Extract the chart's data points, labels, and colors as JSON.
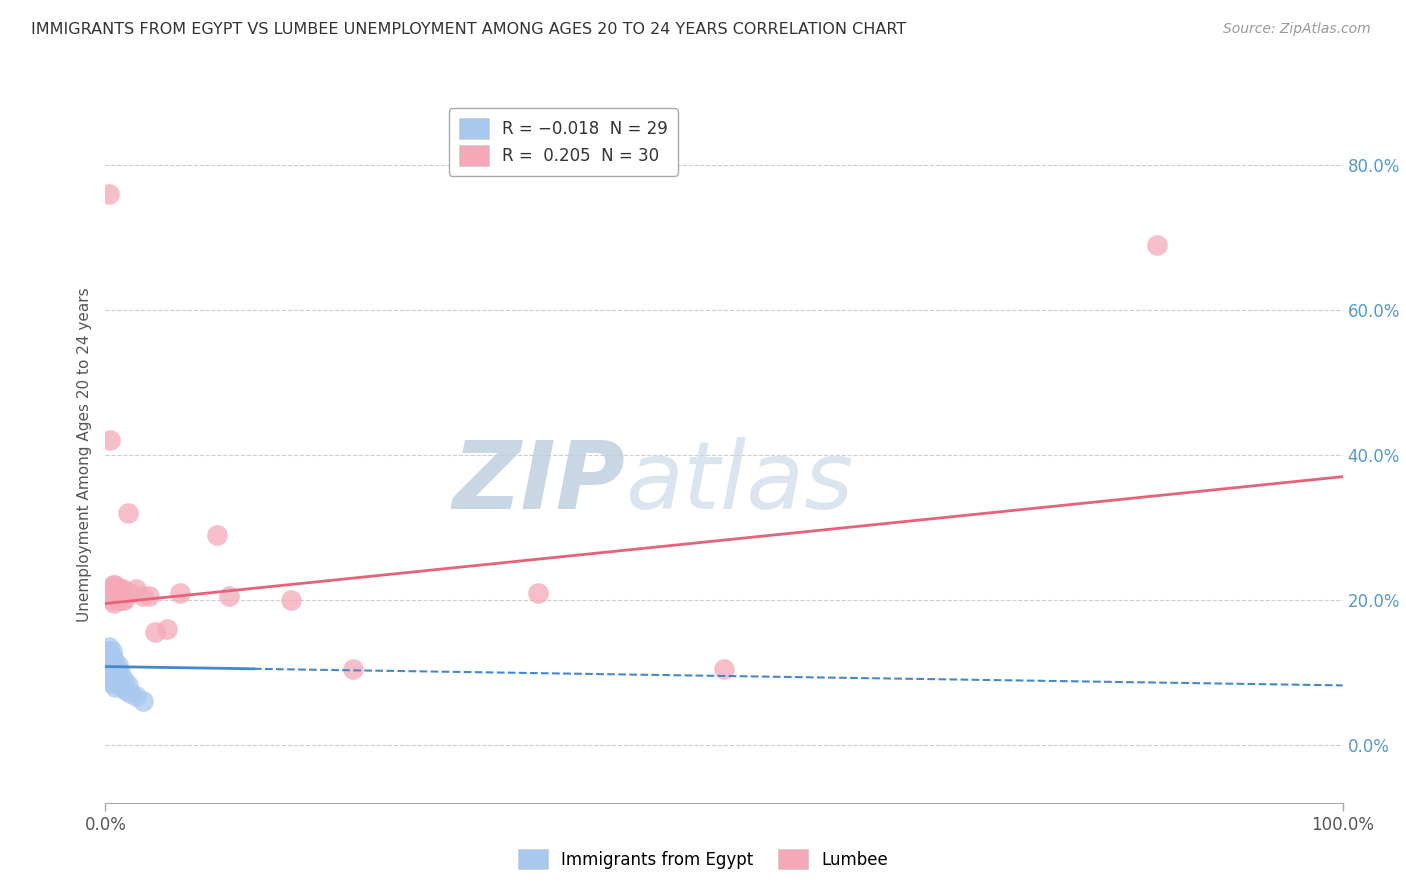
{
  "title": "IMMIGRANTS FROM EGYPT VS LUMBEE UNEMPLOYMENT AMONG AGES 20 TO 24 YEARS CORRELATION CHART",
  "source": "Source: ZipAtlas.com",
  "ylabel": "Unemployment Among Ages 20 to 24 years",
  "right_yticks": [
    0.0,
    0.2,
    0.4,
    0.6,
    0.8
  ],
  "right_yticklabels": [
    "0.0%",
    "20.0%",
    "40.0%",
    "60.0%",
    "80.0%"
  ],
  "egypt_color": "#a8c8f0",
  "lumbee_color": "#f4a8b8",
  "egypt_line_color": "#4488cc",
  "lumbee_line_color": "#e8607a",
  "bg_color": "#ffffff",
  "grid_color": "#cccccc",
  "title_color": "#333333",
  "watermark_zip_color": "#c8d8e8",
  "watermark_atlas_color": "#c8d8e8",
  "xlim": [
    0.0,
    1.0
  ],
  "ylim": [
    -0.08,
    0.88
  ],
  "egypt_x": [
    0.001,
    0.001,
    0.002,
    0.002,
    0.003,
    0.003,
    0.003,
    0.004,
    0.004,
    0.005,
    0.005,
    0.006,
    0.006,
    0.007,
    0.007,
    0.008,
    0.008,
    0.009,
    0.01,
    0.01,
    0.011,
    0.012,
    0.013,
    0.015,
    0.016,
    0.018,
    0.02,
    0.025,
    0.03
  ],
  "egypt_y": [
    0.13,
    0.11,
    0.125,
    0.1,
    0.135,
    0.115,
    0.095,
    0.12,
    0.1,
    0.13,
    0.085,
    0.12,
    0.095,
    0.115,
    0.09,
    0.105,
    0.08,
    0.1,
    0.11,
    0.085,
    0.095,
    0.1,
    0.08,
    0.09,
    0.075,
    0.082,
    0.072,
    0.068,
    0.06
  ],
  "lumbee_x": [
    0.003,
    0.004,
    0.005,
    0.005,
    0.006,
    0.007,
    0.007,
    0.008,
    0.009,
    0.01,
    0.011,
    0.012,
    0.013,
    0.014,
    0.015,
    0.018,
    0.02,
    0.025,
    0.03,
    0.035,
    0.04,
    0.05,
    0.06,
    0.09,
    0.1,
    0.15,
    0.2,
    0.35,
    0.5,
    0.85
  ],
  "lumbee_y": [
    0.76,
    0.42,
    0.215,
    0.2,
    0.22,
    0.215,
    0.195,
    0.22,
    0.2,
    0.215,
    0.2,
    0.215,
    0.2,
    0.215,
    0.2,
    0.32,
    0.21,
    0.215,
    0.205,
    0.205,
    0.155,
    0.16,
    0.21,
    0.29,
    0.205,
    0.2,
    0.105,
    0.21,
    0.105,
    0.69
  ],
  "egypt_trend_x": [
    0.0,
    0.5
  ],
  "egypt_trend_y_start": 0.108,
  "egypt_trend_y_end": 0.095,
  "lumbee_trend_x": [
    0.0,
    1.0
  ],
  "lumbee_trend_y_start": 0.195,
  "lumbee_trend_y_end": 0.37
}
